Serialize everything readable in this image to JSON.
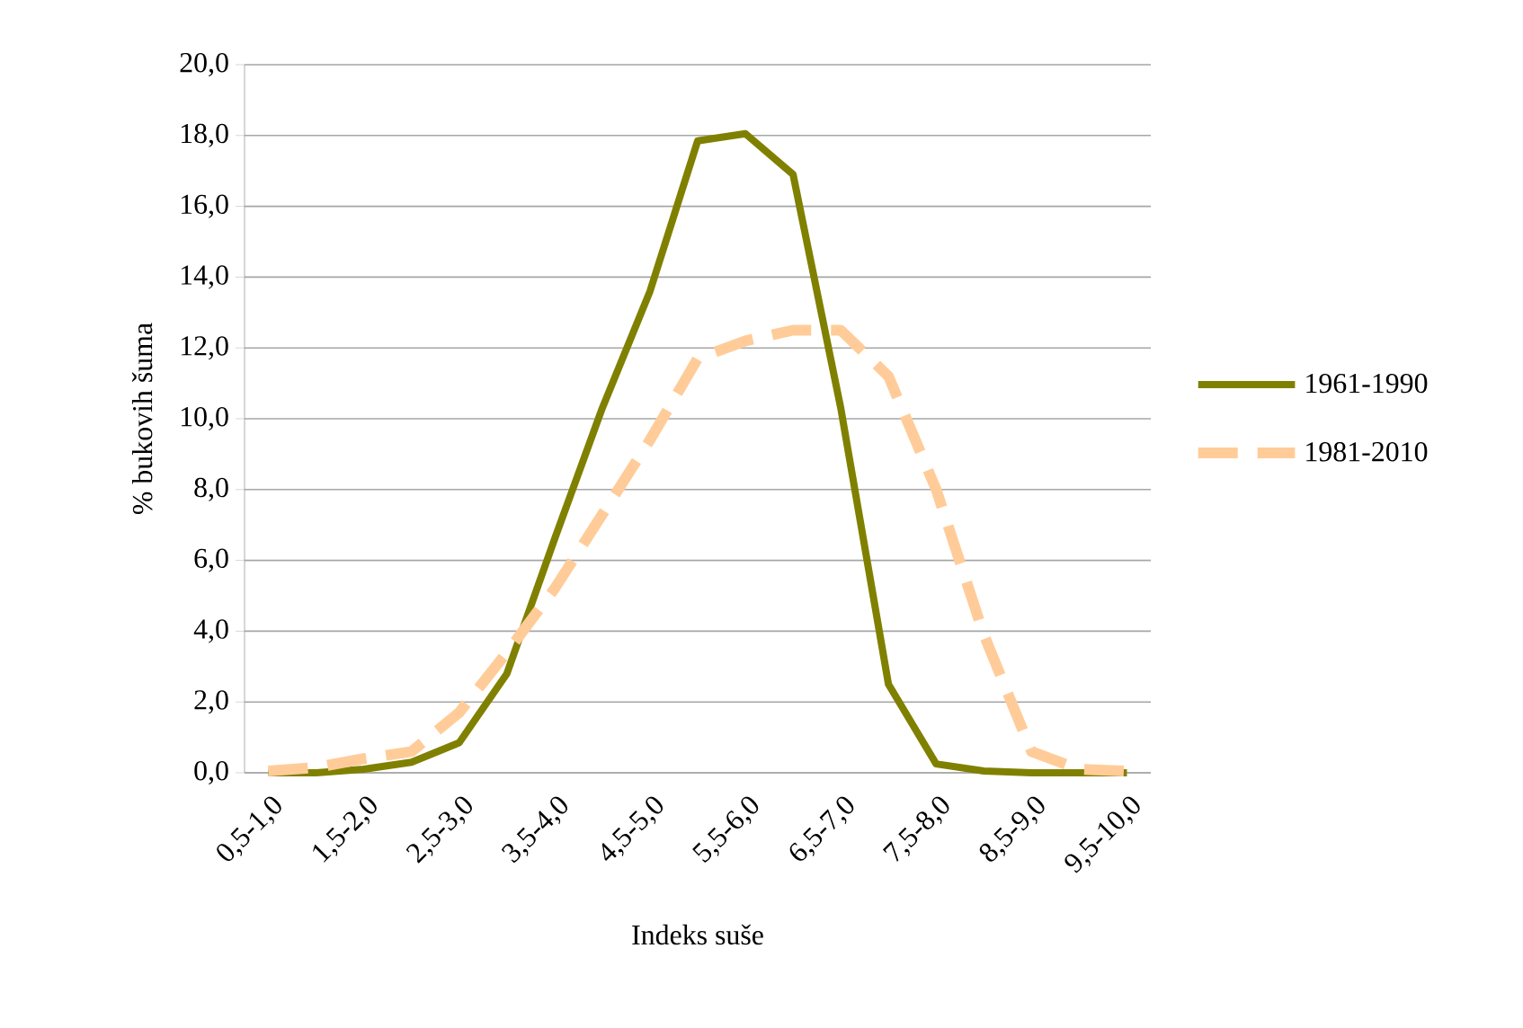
{
  "chart_data": {
    "type": "line",
    "xlabel": "Indeks suše",
    "ylabel": "% bukovih šuma",
    "categories": [
      "0,5-1,0",
      null,
      "1,5-2,0",
      null,
      "2,5-3,0",
      null,
      "3,5-4,0",
      null,
      "4,5-5,0",
      null,
      "5,5-6,0",
      null,
      "6,5-7,0",
      null,
      "7,5-8,0",
      null,
      "8,5-9,0",
      null,
      "9,5-10,0"
    ],
    "series": [
      {
        "name": "1961-1990",
        "color": "#808000",
        "line_style": "solid",
        "values": [
          0,
          0,
          0.1,
          0.3,
          0.85,
          2.8,
          6.6,
          10.3,
          13.6,
          17.85,
          18.05,
          16.9,
          10.3,
          2.5,
          0.25,
          0.05,
          0,
          0,
          0
        ]
      },
      {
        "name": "1981-2010",
        "color": "#ffcc99",
        "line_style": "dashed",
        "values": [
          0.05,
          0.15,
          0.4,
          0.6,
          1.7,
          3.4,
          5.2,
          7.3,
          9.4,
          11.7,
          12.2,
          12.5,
          12.5,
          11.2,
          8.0,
          3.9,
          0.6,
          0.1,
          0.05
        ]
      }
    ],
    "ylim": [
      0,
      20
    ],
    "yticks": [
      {
        "value": 0,
        "label": "0,0"
      },
      {
        "value": 2,
        "label": "2,0"
      },
      {
        "value": 4,
        "label": "4,0"
      },
      {
        "value": 6,
        "label": "6,0"
      },
      {
        "value": 8,
        "label": "8,0"
      },
      {
        "value": 10,
        "label": "10,0"
      },
      {
        "value": 12,
        "label": "12,0"
      },
      {
        "value": 14,
        "label": "14,0"
      },
      {
        "value": 16,
        "label": "16,0"
      },
      {
        "value": 18,
        "label": "18,0"
      },
      {
        "value": 20,
        "label": "20,0"
      }
    ],
    "grid": "y",
    "legend": "right"
  }
}
